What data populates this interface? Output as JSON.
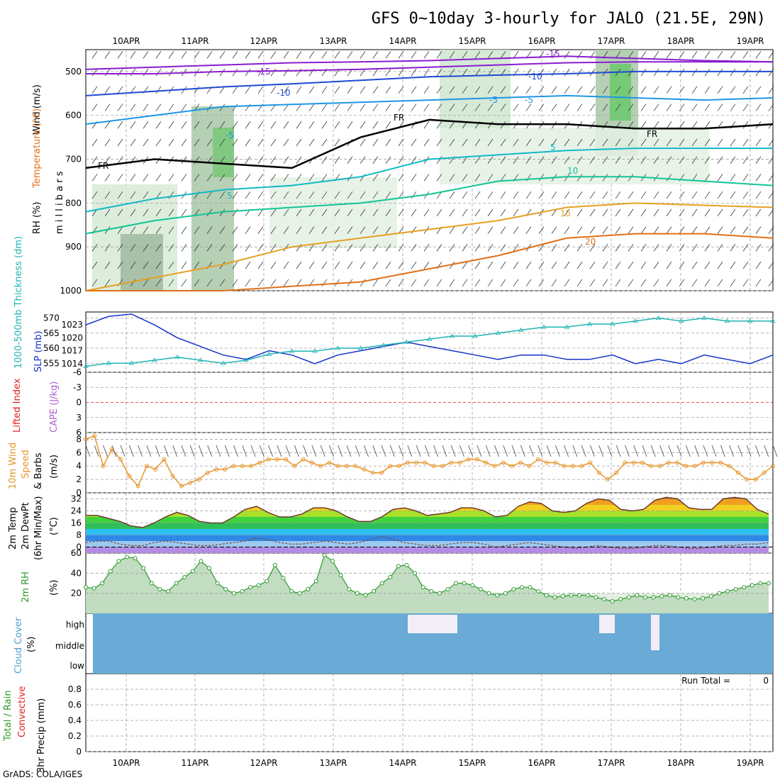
{
  "title": "GFS 0~10day 3-hourly for JALO (21.5E, 29N)",
  "credit": "GrADS: COLA/IGES",
  "dates": [
    "10APR",
    "11APR",
    "12APR",
    "13APR",
    "14APR",
    "15APR",
    "16APR",
    "17APR",
    "18APR",
    "19APR"
  ],
  "colors": {
    "temp_purple": "#8a1ccf",
    "temp_blue": "#1e4bd2",
    "temp_sky": "#1e96e6",
    "temp_cyan": "#12b8c8",
    "temp_teal": "#12c496",
    "temp_orange": "#e6a020",
    "temp_dkorange": "#e07018",
    "temp_red": "#e01e1e",
    "slp_line": "#1432c8",
    "thick_line": "#20b4b4",
    "wind_line": "#e6962d",
    "rh_line": "#2a9a2a",
    "cloud_bg": "#6aaad6",
    "grid": "#a0a0a0"
  },
  "chart_data": [
    {
      "type": "contour",
      "panel": "upper-air",
      "ylabel_parts": [
        "Wind (m/s)",
        "Temperature (°C)",
        "RH (%)"
      ],
      "ylabel_axis": "m i l l i b a r s",
      "yticks": [
        500,
        600,
        700,
        800,
        900,
        1000
      ],
      "ylim": [
        1000,
        450
      ],
      "temperature_contours": [
        {
          "label": "-15",
          "color": "temp_purple",
          "pressure": [
            495,
            490,
            485,
            480,
            478,
            475,
            470,
            465,
            470,
            475,
            478
          ],
          "series": "upper"
        },
        {
          "label": "-15",
          "color": "temp_purple",
          "pressure": [
            505,
            505,
            500,
            498,
            495,
            490,
            485,
            480,
            478,
            478,
            478
          ],
          "series": "lower"
        },
        {
          "label": "-10",
          "color": "temp_blue",
          "pressure": [
            555,
            545,
            535,
            528,
            520,
            512,
            508,
            505,
            500,
            500,
            500
          ]
        },
        {
          "label": "-5",
          "color": "temp_sky",
          "pressure": [
            620,
            600,
            580,
            575,
            570,
            565,
            560,
            555,
            560,
            565,
            560
          ]
        },
        {
          "label": "FR",
          "color": "black",
          "pressure": [
            720,
            700,
            710,
            720,
            650,
            610,
            620,
            620,
            630,
            630,
            620
          ]
        },
        {
          "label": "5",
          "color": "temp_cyan",
          "pressure": [
            820,
            790,
            770,
            760,
            740,
            700,
            690,
            680,
            675,
            675,
            675
          ]
        },
        {
          "label": "10",
          "color": "temp_teal",
          "pressure": [
            870,
            840,
            820,
            810,
            800,
            780,
            750,
            740,
            740,
            750,
            760
          ]
        },
        {
          "label": "15",
          "color": "temp_orange",
          "pressure": [
            1000,
            970,
            940,
            900,
            880,
            860,
            840,
            810,
            800,
            805,
            810
          ]
        },
        {
          "label": "20",
          "color": "temp_dkorange",
          "pressure": [
            1000,
            1000,
            1000,
            990,
            980,
            950,
            920,
            880,
            870,
            870,
            880
          ]
        }
      ],
      "contour_labels": [
        "-15",
        "-15",
        "-10",
        "-10",
        "-5",
        "-5",
        "5",
        "5",
        "-5",
        "10",
        "15",
        "20",
        "FR",
        "FR",
        "FR"
      ]
    },
    {
      "type": "line",
      "panel": "slp-thickness",
      "ylabel_left": "1000-500mb Thickness (dm)",
      "ylabel_right": "SLP (mb)",
      "thickness_ticks": [
        570,
        565,
        560,
        555
      ],
      "slp_ticks": [
        1023,
        1020,
        1017,
        1014
      ],
      "series": [
        {
          "name": "SLP (mb)",
          "axis": "slp",
          "values": [
            1023,
            1025,
            1025.5,
            1023,
            1020,
            1018,
            1016,
            1015,
            1017,
            1016,
            1014,
            1016,
            1017,
            1018,
            1019,
            1018,
            1017,
            1016,
            1015,
            1016,
            1016,
            1015,
            1015,
            1016,
            1014,
            1015,
            1014,
            1016,
            1015,
            1014,
            1016
          ]
        },
        {
          "name": "1000-500mb Thickness (dm)",
          "axis": "thickness",
          "values": [
            554,
            555,
            555,
            556,
            557,
            556,
            555,
            556,
            558,
            559,
            559,
            560,
            560,
            561,
            562,
            563,
            564,
            564,
            565,
            566,
            567,
            567,
            568,
            568,
            569,
            570,
            569,
            570,
            569,
            569,
            569
          ]
        }
      ]
    },
    {
      "type": "line",
      "panel": "stability",
      "ylabel_parts": [
        "Lifted Index",
        "CAPE (J/kg)"
      ],
      "yticks": [
        "-6",
        "-3",
        "0",
        "3",
        "6"
      ],
      "ylim": [
        -6,
        6
      ],
      "lifted_index": [],
      "cape": []
    },
    {
      "type": "line",
      "panel": "10m-wind",
      "ylabel_parts": [
        "10m Wind",
        "Speed",
        "& Barbs",
        "(m/s)"
      ],
      "yticks": [
        0,
        2,
        4,
        6,
        8
      ],
      "ylim": [
        0,
        9
      ],
      "series": [
        {
          "name": "10m Wind Speed",
          "values": [
            8,
            8.5,
            4,
            6.5,
            5,
            2.5,
            1,
            4,
            3.5,
            5,
            2.5,
            1,
            1.5,
            2,
            3,
            3.5,
            3.5,
            4,
            4,
            4,
            4.5,
            5,
            5,
            5,
            4,
            5,
            4.5,
            4,
            4.5,
            4,
            4,
            4,
            3.5,
            3,
            3,
            4,
            4,
            4.5,
            4.5,
            4.5,
            4,
            4,
            4.5,
            4.5,
            5,
            5,
            4.5,
            4,
            4.5,
            4,
            4.5,
            4,
            5,
            4.5,
            4.5,
            4,
            4,
            4,
            4.5,
            3,
            2,
            3,
            4.5,
            4.5,
            4.5,
            4,
            4,
            4.5,
            4.5,
            4,
            4,
            4.5,
            4.5,
            4.5,
            4,
            3,
            2,
            2,
            3,
            4
          ]
        }
      ]
    },
    {
      "type": "area",
      "panel": "2m-temp",
      "ylabel_parts": [
        "2m Temp",
        "2m DewPt",
        "(6hr Min/Max)",
        "(°C)"
      ],
      "yticks": [
        0,
        8,
        16,
        24,
        32
      ],
      "ylim": [
        -4,
        36
      ],
      "series": [
        {
          "name": "2m Temp (°C)",
          "values": [
            21,
            21,
            19,
            17,
            14,
            13,
            16,
            20,
            23,
            21,
            17,
            16,
            16,
            20,
            25,
            27,
            23,
            20,
            20,
            22,
            26,
            26,
            24,
            20,
            17,
            17,
            20,
            25,
            26,
            24,
            21,
            22,
            23,
            26,
            26,
            24,
            20,
            21,
            27,
            30,
            29,
            24,
            23,
            24,
            29,
            32,
            31,
            25,
            24,
            25,
            31,
            33,
            32,
            26,
            25,
            25,
            32,
            33,
            32,
            25,
            22
          ]
        },
        {
          "name": "2m DewPt (°C)",
          "values": [
            3,
            4,
            4,
            2,
            1,
            1,
            3,
            4,
            3,
            2,
            1,
            1,
            2,
            3,
            4,
            6,
            5,
            3,
            2,
            2,
            3,
            4,
            3,
            2,
            3,
            5,
            7,
            5,
            3,
            2,
            1,
            1,
            2,
            3,
            3,
            2,
            0,
            1,
            2,
            3,
            2,
            1,
            0,
            -1,
            0,
            1,
            0,
            -1,
            -1,
            0,
            1,
            1,
            0,
            -1,
            -1,
            0,
            1,
            1,
            2,
            2,
            3
          ]
        }
      ]
    },
    {
      "type": "area",
      "panel": "2m-rh",
      "ylabel_parts": [
        "2m RH",
        "(%)"
      ],
      "yticks": [
        20,
        40,
        60
      ],
      "ylim": [
        0,
        60
      ],
      "series": [
        {
          "name": "2m RH (%)",
          "values": [
            26,
            25,
            30,
            42,
            52,
            56,
            55,
            45,
            30,
            24,
            22,
            30,
            36,
            42,
            52,
            45,
            30,
            24,
            20,
            22,
            26,
            28,
            32,
            48,
            35,
            22,
            20,
            24,
            32,
            58,
            52,
            38,
            24,
            20,
            18,
            22,
            30,
            36,
            47,
            48,
            40,
            26,
            22,
            20,
            24,
            30,
            30,
            28,
            24,
            20,
            18,
            20,
            24,
            26,
            26,
            22,
            18,
            16,
            17,
            18,
            18,
            18,
            16,
            14,
            12,
            14,
            16,
            18,
            16,
            16,
            17,
            18,
            16,
            15,
            14,
            15,
            17,
            20,
            22,
            24,
            26,
            28,
            30,
            30
          ]
        }
      ]
    },
    {
      "type": "heatmap",
      "panel": "cloud-cover",
      "ylabel_parts": [
        "Cloud Cover",
        "(%)"
      ],
      "levels": [
        "high",
        "middle",
        "low"
      ]
    },
    {
      "type": "bar",
      "panel": "precip",
      "ylabel_parts": [
        "Total / Rain",
        "Convective",
        "3hr Precip (mm)"
      ],
      "run_total_label": "Run Total =",
      "run_total_value": "0",
      "yticks": [
        "0",
        "0.2",
        "0.4",
        "0.6",
        "0.8"
      ],
      "ylim": [
        0,
        1
      ],
      "values": []
    }
  ]
}
